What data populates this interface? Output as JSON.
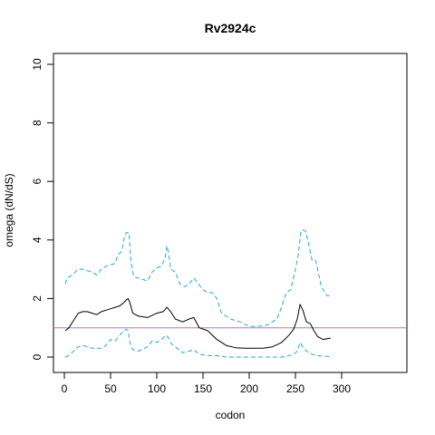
{
  "chart_data": {
    "type": "line",
    "title": "Rv2924c",
    "xlabel": "codon",
    "ylabel": "omega (dN/dS)",
    "xlim": [
      0,
      300
    ],
    "ylim": [
      0,
      10
    ],
    "xticks": [
      0,
      50,
      100,
      150,
      200,
      250,
      300
    ],
    "yticks": [
      0,
      2,
      4,
      6,
      8,
      10
    ],
    "grid": false,
    "legend": "none",
    "reference_line": {
      "y": 1,
      "color": "#c86eb4"
    },
    "colors": {
      "median": "#000000",
      "bounds": "#29a3e0"
    },
    "series": [
      {
        "style": "solid",
        "x": [
          1,
          5,
          10,
          15,
          20,
          25,
          30,
          35,
          40,
          45,
          50,
          55,
          60,
          64,
          67,
          69,
          71,
          74,
          80,
          90,
          100,
          107,
          111,
          115,
          120,
          128,
          135,
          140,
          146,
          155,
          165,
          175,
          185,
          195,
          205,
          215,
          225,
          235,
          243,
          248,
          252,
          255,
          258,
          262,
          266,
          270,
          274,
          280,
          288
        ],
        "y": [
          0.9,
          1.0,
          1.25,
          1.5,
          1.55,
          1.55,
          1.5,
          1.45,
          1.55,
          1.6,
          1.65,
          1.7,
          1.75,
          1.85,
          1.95,
          2.0,
          1.85,
          1.5,
          1.4,
          1.35,
          1.5,
          1.55,
          1.7,
          1.55,
          1.3,
          1.2,
          1.3,
          1.35,
          1.0,
          0.9,
          0.6,
          0.4,
          0.32,
          0.3,
          0.3,
          0.3,
          0.35,
          0.5,
          0.75,
          0.95,
          1.3,
          1.8,
          1.6,
          1.2,
          1.15,
          0.9,
          0.7,
          0.6,
          0.65
        ]
      },
      {
        "style": "dashed",
        "x": [
          1,
          3,
          6,
          10,
          15,
          20,
          25,
          30,
          35,
          40,
          45,
          50,
          55,
          58,
          62,
          65,
          67,
          70,
          72,
          75,
          80,
          90,
          95,
          100,
          105,
          109,
          111,
          113,
          115,
          120,
          125,
          130,
          135,
          140,
          145,
          150,
          155,
          160,
          165,
          170,
          175,
          180,
          190,
          200,
          210,
          220,
          230,
          235,
          240,
          245,
          250,
          253,
          256,
          258,
          261,
          264,
          268,
          272,
          278,
          284,
          287
        ],
        "y": [
          2.5,
          2.7,
          2.75,
          2.85,
          3.0,
          3.0,
          2.95,
          2.9,
          2.8,
          3.0,
          3.1,
          3.15,
          3.2,
          3.5,
          3.6,
          4.1,
          4.25,
          4.25,
          3.3,
          2.75,
          2.7,
          2.6,
          2.9,
          3.05,
          3.1,
          3.4,
          3.8,
          3.5,
          3.0,
          2.9,
          2.5,
          2.4,
          2.5,
          2.7,
          2.5,
          2.3,
          2.2,
          2.2,
          2.0,
          1.5,
          1.4,
          1.3,
          1.2,
          1.05,
          1.05,
          1.1,
          1.3,
          1.7,
          2.2,
          2.3,
          3.0,
          3.5,
          4.3,
          4.35,
          4.3,
          3.9,
          3.3,
          3.3,
          2.4,
          2.1,
          2.1
        ]
      },
      {
        "style": "dashed",
        "x": [
          1,
          5,
          10,
          15,
          20,
          25,
          30,
          35,
          40,
          45,
          50,
          55,
          60,
          64,
          67,
          69,
          71,
          74,
          80,
          90,
          95,
          100,
          105,
          110,
          113,
          116,
          120,
          128,
          135,
          140,
          146,
          155,
          165,
          175,
          185,
          195,
          205,
          215,
          225,
          235,
          243,
          248,
          252,
          255,
          258,
          262,
          268,
          272,
          280,
          288
        ],
        "y": [
          0.0,
          0.05,
          0.2,
          0.35,
          0.4,
          0.35,
          0.3,
          0.3,
          0.3,
          0.4,
          0.6,
          0.55,
          0.75,
          0.9,
          0.95,
          0.9,
          0.5,
          0.25,
          0.2,
          0.35,
          0.55,
          0.5,
          0.6,
          0.75,
          0.65,
          0.45,
          0.35,
          0.15,
          0.2,
          0.25,
          0.1,
          0.05,
          0.05,
          0.0,
          0.0,
          0.0,
          0.0,
          0.0,
          0.0,
          0.0,
          0.05,
          0.1,
          0.2,
          0.5,
          0.35,
          0.2,
          0.1,
          0.05,
          0.03,
          0.02
        ]
      }
    ]
  }
}
